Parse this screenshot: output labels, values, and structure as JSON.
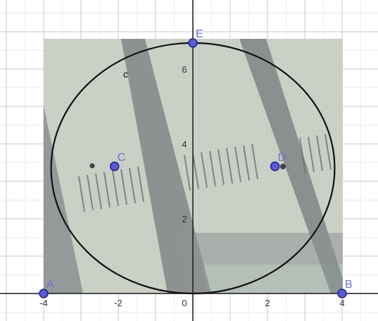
{
  "axes": {
    "x_ticks": [
      "-4",
      "-2",
      "0",
      "2",
      "4"
    ],
    "y_ticks": [
      "2",
      "4",
      "6"
    ]
  },
  "points": [
    {
      "label": "A",
      "x": -4,
      "y": 0
    },
    {
      "label": "B",
      "x": 4,
      "y": 0
    },
    {
      "label": "C",
      "x": -2.1,
      "y": 3.4
    },
    {
      "label": "D",
      "x": 2.2,
      "y": 3.4
    },
    {
      "label": "E",
      "x": 0,
      "y": 6.7
    }
  ],
  "curve": {
    "label": "c",
    "center": [
      0,
      3.35
    ],
    "rx": 3.8,
    "ry": 3.35
  },
  "colors": {
    "point_fill": "#5b5bd6",
    "point_stroke": "#23238a",
    "label": "#6f6fd6",
    "grid_major": "#c8c8c8",
    "grid_minor": "#ececec",
    "curve": "#111111"
  }
}
